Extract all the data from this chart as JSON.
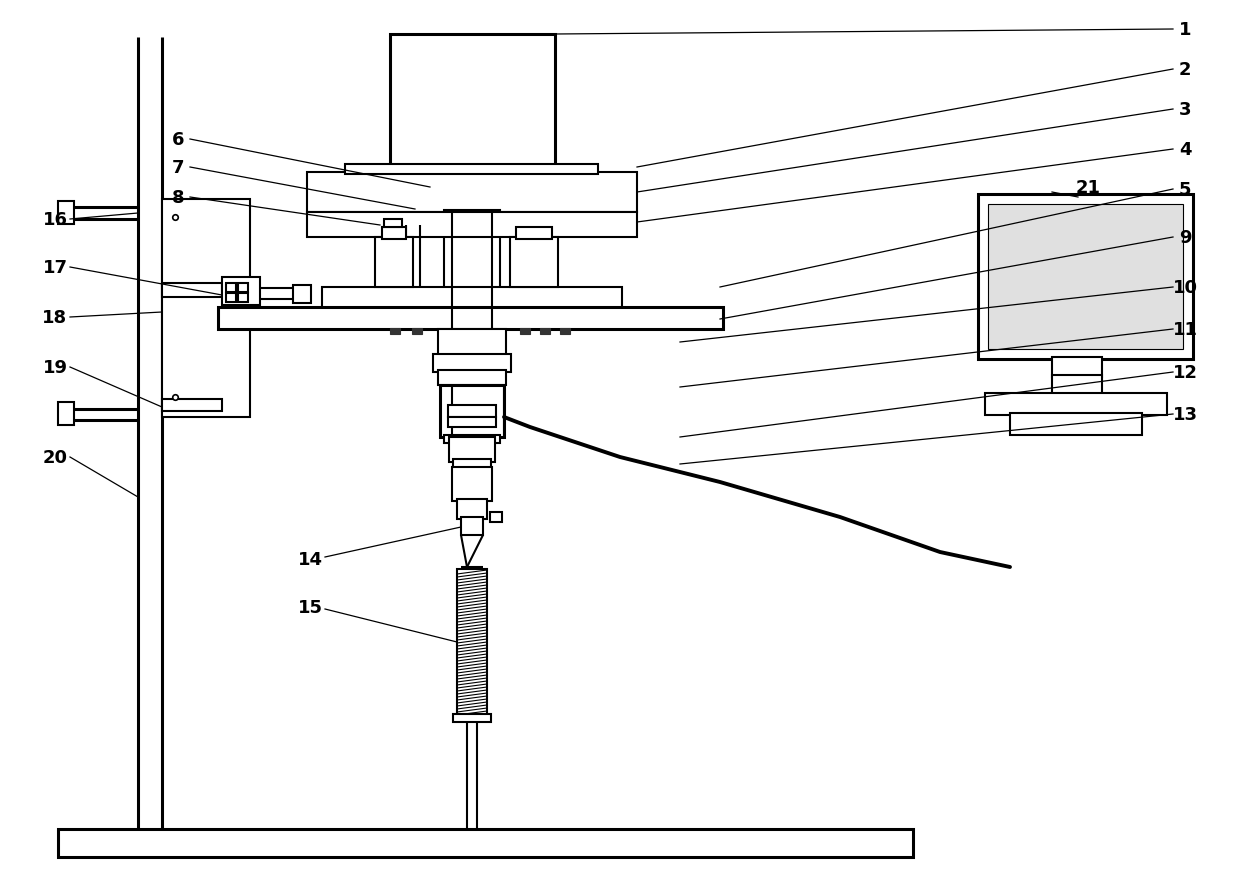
{
  "bg": "#ffffff",
  "lc": "#000000",
  "lw": 1.5,
  "tlw": 2.2,
  "fs": 13,
  "fw": "bold",
  "figsize": [
    12.39,
    8.78
  ],
  "dpi": 100
}
